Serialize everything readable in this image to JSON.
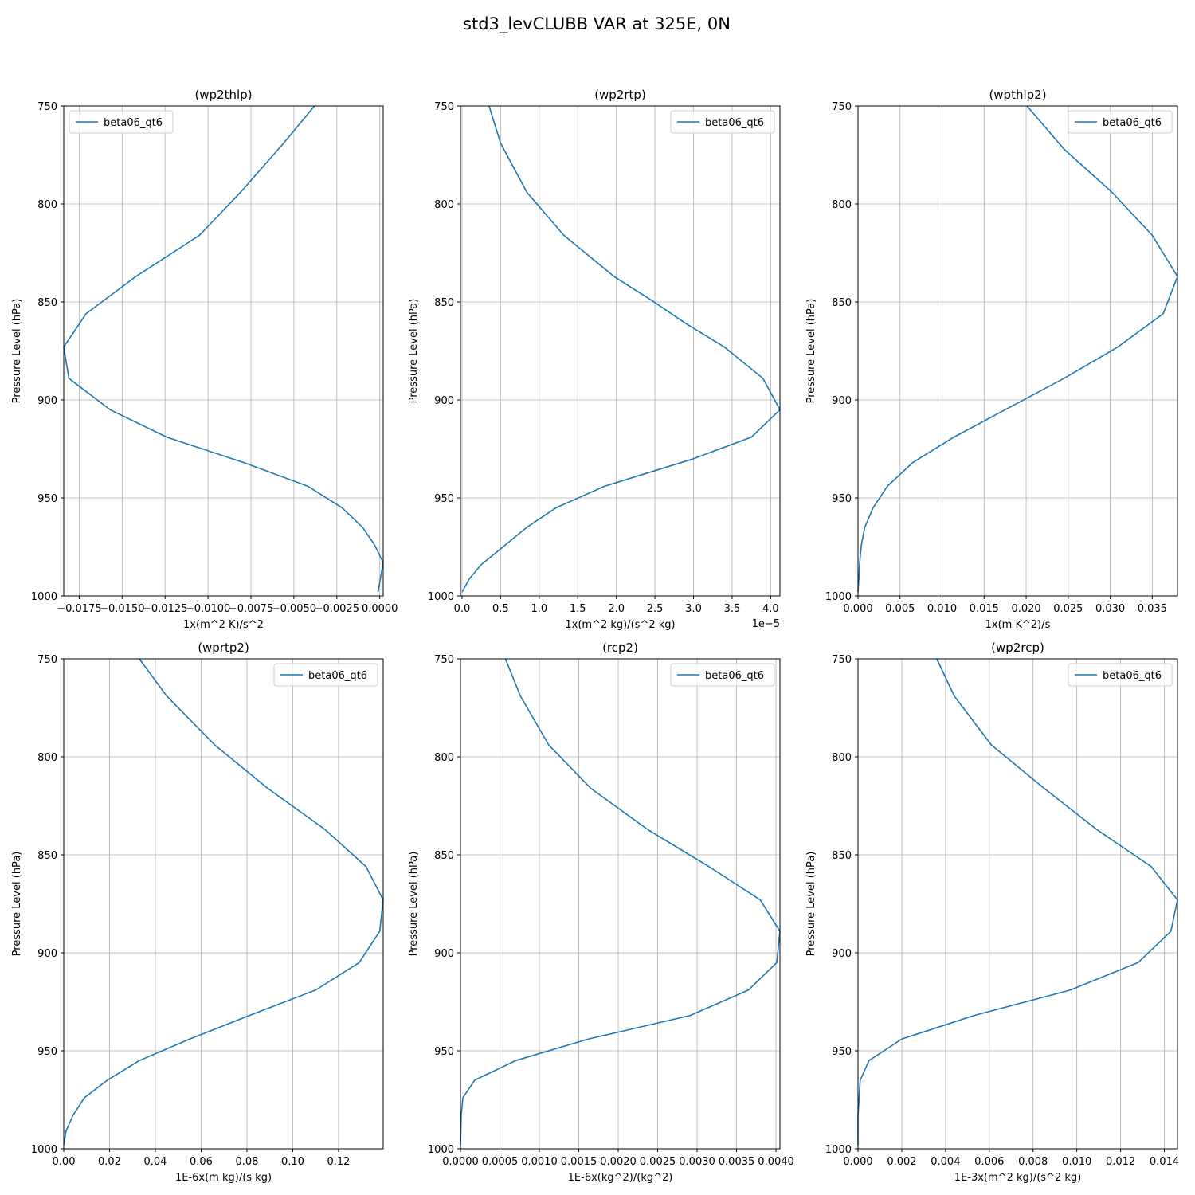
{
  "figure": {
    "title": "std3_levCLUBB VAR at 325E, 0N"
  },
  "colors": {
    "line": "#1f77b4",
    "grid": "#b0b0b0",
    "axes": "#000000"
  },
  "chart_data": [
    {
      "type": "line",
      "title": "(wp2thlp)",
      "xlabel": "1x(m^2 K)/s^2",
      "ylabel": "Pressure Level (hPa)",
      "offset_text": "",
      "xlim": [
        -0.0184,
        0.0002
      ],
      "ylim": [
        1000,
        750
      ],
      "y_inverted": true,
      "xticks": [
        -0.0175,
        -0.015,
        -0.0125,
        -0.01,
        -0.0075,
        -0.005,
        -0.0025,
        0.0
      ],
      "xtick_labels": [
        "−0.0175",
        "−0.0150",
        "−0.0125",
        "−0.0100",
        "−0.0075",
        "−0.0050",
        "−0.0025",
        "0.0000"
      ],
      "yticks": [
        750,
        800,
        850,
        900,
        950,
        1000
      ],
      "ytick_labels": [
        "750",
        "800",
        "850",
        "900",
        "950",
        "1000"
      ],
      "grid": true,
      "legend": "top-left",
      "series": [
        {
          "name": "beta06_qt6",
          "x": [
            -0.0038,
            -0.0056,
            -0.0081,
            -0.0105,
            -0.0142,
            -0.0171,
            -0.0184,
            -0.0181,
            -0.0157,
            -0.0124,
            -0.0079,
            -0.0042,
            -0.0022,
            -0.001,
            -0.0003,
            0.0002,
            -0.0001
          ],
          "y": [
            750,
            769,
            794,
            816,
            837,
            856,
            873,
            889,
            905,
            919,
            932,
            944,
            955,
            965,
            974,
            983,
            998
          ]
        }
      ]
    },
    {
      "type": "line",
      "title": "(wp2rtp)",
      "xlabel": "1x(m^2 kg)/(s^2 kg)",
      "ylabel": "Pressure Level (hPa)",
      "offset_text": "1e−5",
      "xlim": [
        -0.02,
        4.12
      ],
      "ylim": [
        1000,
        750
      ],
      "y_inverted": true,
      "xticks": [
        0,
        0.5,
        1,
        1.5,
        2,
        2.5,
        3,
        3.5,
        4
      ],
      "xtick_labels": [
        "0.0",
        "0.5",
        "1.0",
        "1.5",
        "2.0",
        "2.5",
        "3.0",
        "3.5",
        "4.0"
      ],
      "yticks": [
        750,
        800,
        850,
        900,
        950,
        1000
      ],
      "ytick_labels": [
        "750",
        "800",
        "850",
        "900",
        "950",
        "1000"
      ],
      "grid": true,
      "legend": "top-right",
      "series": [
        {
          "name": "beta06_qt6",
          "x": [
            0.35,
            0.5,
            0.84,
            1.32,
            1.97,
            2.45,
            2.9,
            3.4,
            3.9,
            4.12,
            3.75,
            3.0,
            1.85,
            1.22,
            0.84,
            0.5,
            0.25,
            0.1,
            0.0
          ],
          "y": [
            750,
            769,
            794,
            816,
            837,
            849,
            861,
            873,
            889,
            905,
            919,
            930,
            944,
            955,
            965,
            976,
            984,
            991,
            998
          ]
        }
      ]
    },
    {
      "type": "line",
      "title": "(wpthlp2)",
      "xlabel": "1x(m K^2)/s",
      "ylabel": "Pressure Level (hPa)",
      "offset_text": "",
      "xlim": [
        0.0,
        0.038
      ],
      "ylim": [
        1000,
        750
      ],
      "y_inverted": true,
      "xticks": [
        0,
        0.005,
        0.01,
        0.015,
        0.02,
        0.025,
        0.03,
        0.035
      ],
      "xtick_labels": [
        "0.000",
        "0.005",
        "0.010",
        "0.015",
        "0.020",
        "0.025",
        "0.030",
        "0.035"
      ],
      "yticks": [
        750,
        800,
        850,
        900,
        950,
        1000
      ],
      "ytick_labels": [
        "750",
        "800",
        "850",
        "900",
        "950",
        "1000"
      ],
      "grid": true,
      "legend": "top-right",
      "series": [
        {
          "name": "beta06_qt6",
          "x": [
            0.0201,
            0.0245,
            0.0302,
            0.035,
            0.038,
            0.0363,
            0.0309,
            0.0245,
            0.0175,
            0.0114,
            0.0065,
            0.0035,
            0.0018,
            0.0008,
            0.0004,
            0.0002,
            0.0001,
            0.0
          ],
          "y": [
            750,
            772,
            794,
            816,
            837,
            856,
            873,
            889,
            905,
            919,
            932,
            944,
            955,
            965,
            974,
            983,
            991,
            998
          ]
        }
      ]
    },
    {
      "type": "line",
      "title": "(wprtp2)",
      "xlabel": "1E-6x(m kg)/(s kg)",
      "ylabel": "Pressure Level (hPa)",
      "offset_text": "",
      "xlim": [
        0.0,
        0.1395
      ],
      "ylim": [
        1000,
        750
      ],
      "y_inverted": true,
      "xticks": [
        0,
        0.02,
        0.04,
        0.06,
        0.08,
        0.1,
        0.12
      ],
      "xtick_labels": [
        "0.00",
        "0.02",
        "0.04",
        "0.06",
        "0.08",
        "0.10",
        "0.12"
      ],
      "yticks": [
        750,
        800,
        850,
        900,
        950,
        1000
      ],
      "ytick_labels": [
        "750",
        "800",
        "850",
        "900",
        "950",
        "1000"
      ],
      "grid": true,
      "legend": "top-right",
      "series": [
        {
          "name": "beta06_qt6",
          "x": [
            0.033,
            0.045,
            0.066,
            0.089,
            0.114,
            0.132,
            0.1395,
            0.138,
            0.129,
            0.11,
            0.081,
            0.055,
            0.033,
            0.019,
            0.009,
            0.004,
            0.001,
            0.0
          ],
          "y": [
            750,
            769,
            794,
            816,
            837,
            856,
            873,
            889,
            905,
            919,
            932,
            944,
            955,
            965,
            974,
            983,
            991,
            998
          ]
        }
      ]
    },
    {
      "type": "line",
      "title": "(rcp2)",
      "xlabel": "1E-6x(kg^2)/(kg^2)",
      "ylabel": "Pressure Level (hPa)",
      "offset_text": "",
      "xlim": [
        0.0,
        0.00405
      ],
      "ylim": [
        1000,
        750
      ],
      "y_inverted": true,
      "xticks": [
        0,
        0.0005,
        0.001,
        0.0015,
        0.002,
        0.0025,
        0.003,
        0.0035,
        0.004
      ],
      "xtick_labels": [
        "0.0000",
        "0.0005",
        "0.0010",
        "0.0015",
        "0.0020",
        "0.0025",
        "0.0030",
        "0.0035",
        "0.0040"
      ],
      "yticks": [
        750,
        800,
        850,
        900,
        950,
        1000
      ],
      "ytick_labels": [
        "750",
        "800",
        "850",
        "900",
        "950",
        "1000"
      ],
      "grid": true,
      "legend": "top-right",
      "series": [
        {
          "name": "beta06_qt6",
          "x": [
            0.00057,
            0.00076,
            0.00112,
            0.00165,
            0.00237,
            0.00315,
            0.0038,
            0.00405,
            0.00401,
            0.00365,
            0.00291,
            0.00162,
            0.0007,
            0.00018,
            3e-05,
            1e-05,
            0.0
          ],
          "y": [
            750,
            769,
            794,
            816,
            837,
            856,
            873,
            889,
            905,
            919,
            932,
            944,
            955,
            965,
            974,
            983,
            998
          ]
        }
      ]
    },
    {
      "type": "line",
      "title": "(wp2rcp)",
      "xlabel": "1E-3x(m^2 kg)/(s^2 kg)",
      "ylabel": "Pressure Level (hPa)",
      "offset_text": "",
      "xlim": [
        0.0,
        0.0146
      ],
      "ylim": [
        1000,
        750
      ],
      "y_inverted": true,
      "xticks": [
        0,
        0.002,
        0.004,
        0.006,
        0.008,
        0.01,
        0.012,
        0.014
      ],
      "xtick_labels": [
        "0.000",
        "0.002",
        "0.004",
        "0.006",
        "0.008",
        "0.010",
        "0.012",
        "0.014"
      ],
      "yticks": [
        750,
        800,
        850,
        900,
        950,
        1000
      ],
      "ytick_labels": [
        "750",
        "800",
        "850",
        "900",
        "950",
        "1000"
      ],
      "grid": true,
      "legend": "top-right",
      "series": [
        {
          "name": "beta06_qt6",
          "x": [
            0.0036,
            0.0044,
            0.0061,
            0.0085,
            0.0109,
            0.0134,
            0.0146,
            0.0143,
            0.0128,
            0.0097,
            0.0053,
            0.002,
            0.0005,
            0.0001,
            0.0,
            0.0
          ],
          "y": [
            750,
            769,
            794,
            816,
            837,
            856,
            873,
            889,
            905,
            919,
            932,
            944,
            955,
            965,
            983,
            998
          ]
        }
      ]
    }
  ]
}
